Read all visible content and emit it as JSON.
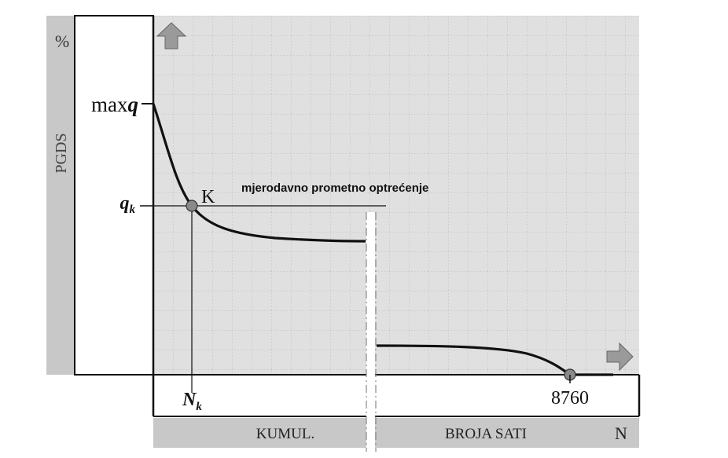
{
  "chart_data": {
    "type": "line",
    "y_axis": {
      "side_label": "PGDS",
      "unit": "%",
      "max_label_prefix": "max",
      "max_label_var": "q",
      "qk_var": "q",
      "qk_sub": "k"
    },
    "x_axis": {
      "nk_var": "N",
      "nk_sub": "k",
      "end_tick": "8760",
      "caption_left": "KUMUL.",
      "caption_right": "BROJA SATI",
      "caption_end": "N"
    },
    "point_k_label": "K",
    "threshold_label": "mjerodavno prometno optrećenje",
    "arrows": [
      "up-arrow-icon",
      "right-arrow-icon"
    ],
    "colors": {
      "plot_bg": "#e0e0e0",
      "side_band": "#c8c8c8",
      "curve": "#111111",
      "marker": "#8a8a8a",
      "arrow": "#9a9a9a"
    }
  }
}
